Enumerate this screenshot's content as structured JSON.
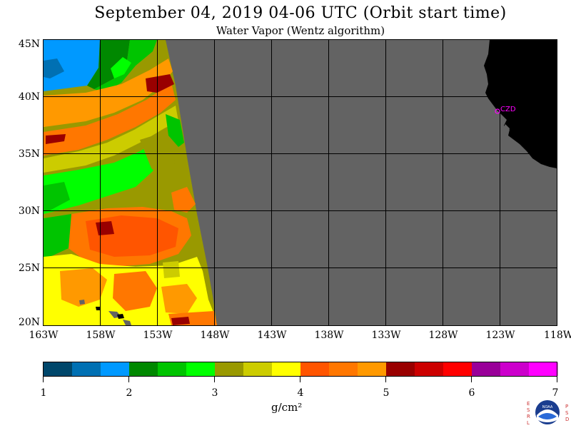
{
  "header": {
    "title": "September 04, 2019  04-06 UTC  (Orbit start time)",
    "subtitle": "Water Vapor (Wentz algorithm)"
  },
  "map": {
    "lat_labels": [
      "45N",
      "40N",
      "35N",
      "30N",
      "25N",
      "20N"
    ],
    "lon_labels": [
      "163W",
      "158W",
      "153W",
      "148W",
      "143W",
      "138W",
      "133W",
      "128W",
      "123W",
      "118W"
    ],
    "station_label": "CZD",
    "colors": {
      "no_data": "#636363",
      "land": "#000000",
      "station": "#ff00ff"
    }
  },
  "colorbar": {
    "tick_labels": [
      "1",
      "2",
      "3",
      "4",
      "5",
      "6",
      "7"
    ],
    "unit": "g/cm²",
    "colors": [
      "#00476b",
      "#0070b3",
      "#0099ff",
      "#008800",
      "#00c400",
      "#00ff00",
      "#999900",
      "#cccc00",
      "#ffff00",
      "#ff5500",
      "#ff7700",
      "#ff9900",
      "#990000",
      "#cc0000",
      "#ff0000",
      "#990099",
      "#cc00cc",
      "#ff00ff"
    ]
  },
  "logo": {
    "left_letters": "ESRL",
    "right_letters": "PSD",
    "name": "noaa-logo",
    "emblem_text": "NOAA"
  }
}
